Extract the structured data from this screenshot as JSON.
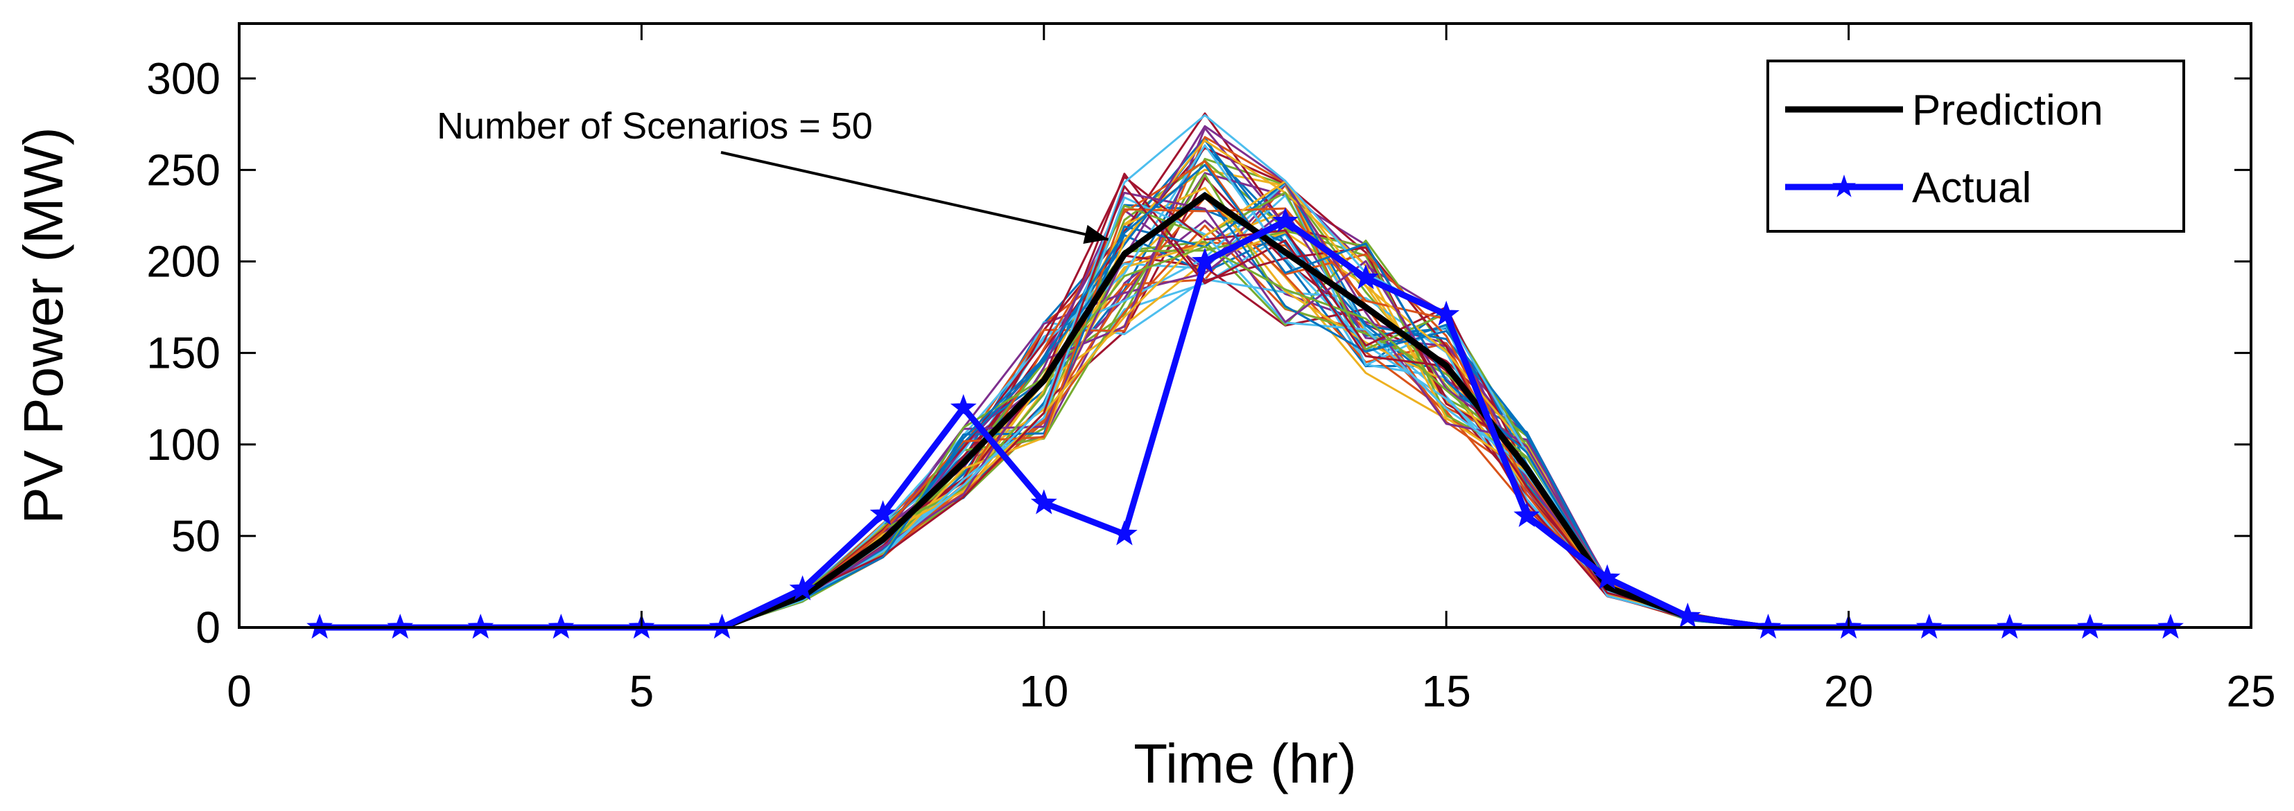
{
  "chart_data": {
    "type": "line",
    "title": "",
    "xlabel": "Time (hr)",
    "ylabel": "PV Power (MW)",
    "xlim": [
      0,
      25
    ],
    "ylim": [
      0,
      330
    ],
    "xticks": [
      0,
      5,
      10,
      15,
      20,
      25
    ],
    "yticks": [
      0,
      50,
      100,
      150,
      200,
      250,
      300
    ],
    "grid": false,
    "legend_position": "top-right",
    "annotation": {
      "text": "Number of Scenarios = 50",
      "arrow_to": {
        "x": 10.8,
        "y": 212
      }
    },
    "x": [
      1,
      2,
      3,
      4,
      5,
      6,
      7,
      8,
      9,
      10,
      11,
      12,
      13,
      14,
      15,
      16,
      17,
      18,
      19,
      20,
      21,
      22,
      23,
      24
    ],
    "series": [
      {
        "name": "Prediction",
        "color": "#000000",
        "marker": "none",
        "values": [
          0,
          0,
          0,
          0,
          0,
          0,
          17,
          48,
          90,
          135,
          204,
          236,
          205,
          175,
          143,
          87,
          22,
          6,
          0,
          0,
          0,
          0,
          0,
          0
        ]
      },
      {
        "name": "Actual",
        "color": "#0a0aff",
        "marker": "star",
        "values": [
          0,
          0,
          0,
          0,
          0,
          0,
          21,
          62,
          120,
          68,
          51,
          200,
          222,
          191,
          171,
          61,
          27,
          6,
          0,
          0,
          0,
          0,
          0,
          0
        ]
      }
    ],
    "scenarios": {
      "count": 50,
      "spread": [
        0,
        0,
        0,
        0,
        0,
        0,
        3,
        10,
        20,
        32,
        45,
        48,
        40,
        38,
        33,
        22,
        5,
        2,
        0,
        0,
        0,
        0,
        0,
        0
      ],
      "colors": [
        "#0072bd",
        "#d95319",
        "#edb120",
        "#7e2f8e",
        "#77ac30",
        "#4dbeee",
        "#a2142f"
      ]
    }
  }
}
